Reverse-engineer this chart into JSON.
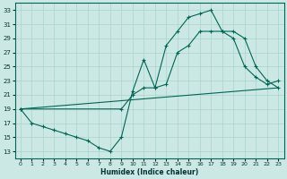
{
  "xlabel": "Humidex (Indice chaleur)",
  "bg_color": "#cce8e4",
  "grid_color": "#a8d4cc",
  "line_color": "#006655",
  "xlim": [
    -0.5,
    23.5
  ],
  "ylim": [
    12,
    34
  ],
  "xticks": [
    0,
    1,
    2,
    3,
    4,
    5,
    6,
    7,
    8,
    9,
    10,
    11,
    12,
    13,
    14,
    15,
    16,
    17,
    18,
    19,
    20,
    21,
    22,
    23
  ],
  "yticks": [
    13,
    15,
    17,
    19,
    21,
    23,
    25,
    27,
    29,
    31,
    33
  ],
  "line1_x": [
    0,
    1,
    2,
    3,
    4,
    5,
    6,
    7,
    8,
    9,
    10,
    11,
    12,
    13,
    14,
    15,
    16,
    17,
    18,
    19,
    20,
    21,
    22,
    23
  ],
  "line1_y": [
    19,
    17,
    16.5,
    16,
    15.5,
    15,
    14.5,
    13.5,
    13,
    15,
    21.5,
    26,
    22,
    28,
    30,
    32,
    32.5,
    33,
    30,
    29,
    25,
    23.5,
    22.5,
    23
  ],
  "line2_x": [
    0,
    9,
    10,
    11,
    12,
    13,
    14,
    15,
    16,
    17,
    18,
    19,
    20,
    21,
    22,
    23
  ],
  "line2_y": [
    19,
    19,
    21,
    22,
    22,
    22.5,
    27,
    28,
    30,
    30,
    30,
    30,
    29,
    25,
    23,
    22
  ],
  "line3_x": [
    0,
    23
  ],
  "line3_y": [
    19,
    22
  ]
}
